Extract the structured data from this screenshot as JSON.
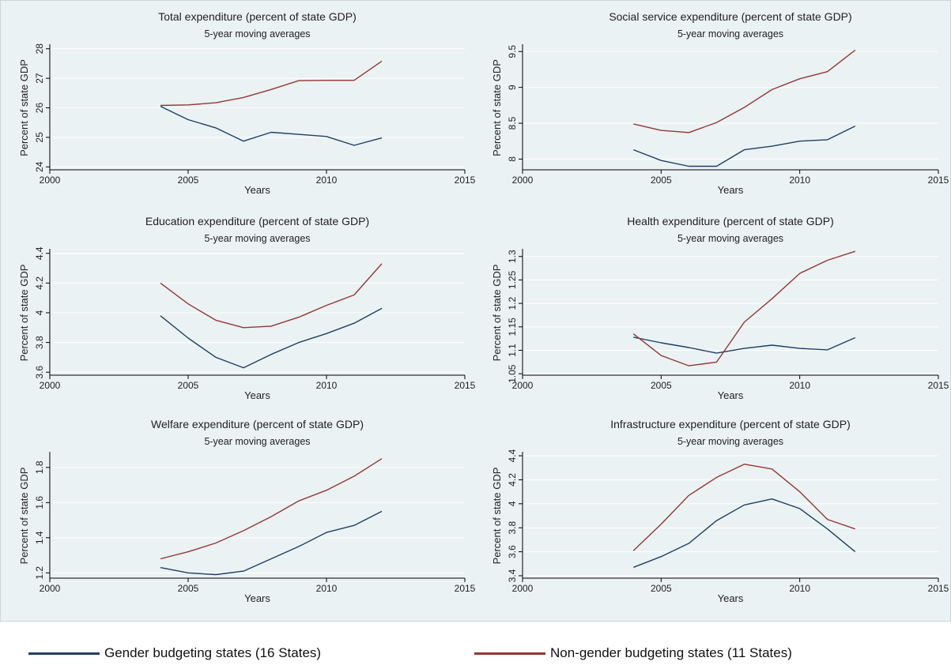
{
  "colors": {
    "gender": "#1f3f64",
    "non_gender": "#953735",
    "background": "#eaf2f3",
    "grid": "#ffffff"
  },
  "legend": {
    "placement": "bottom",
    "gender_label": "Gender budgeting states (16 States)",
    "non_gender_label": "Non-gender budgeting states (11 States)"
  },
  "chart_data": [
    {
      "type": "line",
      "title": "Total expenditure (percent of state GDP)",
      "subtitle": "5-year moving averages",
      "xlabel": "Years",
      "ylabel": "Percent of state GDP",
      "xlim": [
        2000,
        2015
      ],
      "xticks": [
        2000,
        2005,
        2010,
        2015
      ],
      "ylim": [
        23.9,
        28.1
      ],
      "yticks": [
        24,
        25,
        26,
        27,
        28
      ],
      "ytick_labels": [
        "24",
        "25",
        "26",
        "27",
        "28"
      ],
      "x": [
        2004,
        2005,
        2006,
        2007,
        2008,
        2009,
        2010,
        2011,
        2012
      ],
      "series": [
        {
          "name": "Gender budgeting states (16 States)",
          "key": "gender",
          "values": [
            26.05,
            25.6,
            25.32,
            24.87,
            25.17,
            25.1,
            25.03,
            24.73,
            24.98
          ]
        },
        {
          "name": "Non-gender budgeting states (11 States)",
          "key": "non_gender",
          "values": [
            26.08,
            26.1,
            26.17,
            26.35,
            26.62,
            26.92,
            26.93,
            26.93,
            27.58
          ]
        }
      ]
    },
    {
      "type": "line",
      "title": "Social service expenditure (percent of state GDP)",
      "subtitle": "5-year moving averages",
      "xlabel": "Years",
      "ylabel": "Percent of state GDP",
      "xlim": [
        2000,
        2015
      ],
      "xticks": [
        2000,
        2005,
        2010,
        2015
      ],
      "ylim": [
        7.85,
        9.58
      ],
      "yticks": [
        8,
        8.5,
        9,
        9.5
      ],
      "ytick_labels": [
        "8",
        "8.5",
        "9",
        "9.5"
      ],
      "x": [
        2004,
        2005,
        2006,
        2007,
        2008,
        2009,
        2010,
        2011,
        2012
      ],
      "series": [
        {
          "name": "Gender budgeting states (16 States)",
          "key": "gender",
          "values": [
            8.13,
            7.98,
            7.9,
            7.9,
            8.13,
            8.18,
            8.25,
            8.27,
            8.46
          ]
        },
        {
          "name": "Non-gender budgeting states (11 States)",
          "key": "non_gender",
          "values": [
            8.49,
            8.4,
            8.37,
            8.51,
            8.72,
            8.97,
            9.12,
            9.22,
            9.52
          ]
        }
      ]
    },
    {
      "type": "line",
      "title": "Education expenditure (percent of state GDP)",
      "subtitle": "5-year moving averages",
      "xlabel": "Years",
      "ylabel": "Percent of state GDP",
      "xlim": [
        2000,
        2015
      ],
      "xticks": [
        2000,
        2005,
        2010,
        2015
      ],
      "ylim": [
        3.58,
        4.42
      ],
      "yticks": [
        3.6,
        3.8,
        4,
        4.2,
        4.4
      ],
      "ytick_labels": [
        "3.6",
        "3.8",
        "4",
        "4.2",
        "4.4"
      ],
      "x": [
        2004,
        2005,
        2006,
        2007,
        2008,
        2009,
        2010,
        2011,
        2012
      ],
      "series": [
        {
          "name": "Gender budgeting states (16 States)",
          "key": "gender",
          "values": [
            3.98,
            3.83,
            3.7,
            3.63,
            3.72,
            3.8,
            3.86,
            3.93,
            4.03
          ]
        },
        {
          "name": "Non-gender budgeting states (11 States)",
          "key": "non_gender",
          "values": [
            4.2,
            4.06,
            3.95,
            3.9,
            3.91,
            3.97,
            4.05,
            4.12,
            4.33
          ]
        }
      ]
    },
    {
      "type": "line",
      "title": "Health expenditure (percent of state GDP)",
      "subtitle": "5-year moving averages",
      "xlabel": "Years",
      "ylabel": "Percent of state GDP",
      "xlim": [
        2000,
        2015
      ],
      "xticks": [
        2000,
        2005,
        2010,
        2015
      ],
      "ylim": [
        1.047,
        1.313
      ],
      "yticks": [
        1.05,
        1.1,
        1.15,
        1.2,
        1.25,
        1.3
      ],
      "ytick_labels": [
        "1.05",
        "1.1",
        "1.15",
        "1.2",
        "1.25",
        "1.3"
      ],
      "x": [
        2004,
        2005,
        2006,
        2007,
        2008,
        2009,
        2010,
        2011,
        2012
      ],
      "series": [
        {
          "name": "Gender budgeting states (16 States)",
          "key": "gender",
          "values": [
            1.128,
            1.116,
            1.106,
            1.094,
            1.104,
            1.111,
            1.104,
            1.101,
            1.127
          ]
        },
        {
          "name": "Non-gender budgeting states (11 States)",
          "key": "non_gender",
          "values": [
            1.135,
            1.089,
            1.067,
            1.075,
            1.16,
            1.21,
            1.264,
            1.292,
            1.311
          ]
        }
      ]
    },
    {
      "type": "line",
      "title": "Welfare expenditure (percent of state GDP)",
      "subtitle": "5-year moving averages",
      "xlabel": "Years",
      "ylabel": "Percent of state GDP",
      "xlim": [
        2000,
        2015
      ],
      "xticks": [
        2000,
        2005,
        2010,
        2015
      ],
      "ylim": [
        1.17,
        1.88
      ],
      "yticks": [
        1.2,
        1.4,
        1.6,
        1.8
      ],
      "ytick_labels": [
        "1.2",
        "1.4",
        "1.6",
        "1.8"
      ],
      "x": [
        2004,
        2005,
        2006,
        2007,
        2008,
        2009,
        2010,
        2011,
        2012
      ],
      "series": [
        {
          "name": "Gender budgeting states (16 States)",
          "key": "gender",
          "values": [
            1.23,
            1.2,
            1.19,
            1.21,
            1.28,
            1.35,
            1.43,
            1.47,
            1.55
          ]
        },
        {
          "name": "Non-gender budgeting states (11 States)",
          "key": "non_gender",
          "values": [
            1.28,
            1.32,
            1.37,
            1.44,
            1.52,
            1.61,
            1.67,
            1.75,
            1.85
          ]
        }
      ]
    },
    {
      "type": "line",
      "title": "Infrastructure expenditure (percent of state GDP)",
      "subtitle": "5-year moving averages",
      "xlabel": "Years",
      "ylabel": "Percent of state GDP",
      "xlim": [
        2000,
        2015
      ],
      "xticks": [
        2000,
        2005,
        2010,
        2015
      ],
      "ylim": [
        3.38,
        4.42
      ],
      "yticks": [
        3.4,
        3.6,
        3.8,
        4,
        4.2,
        4.4
      ],
      "ytick_labels": [
        "3.4",
        "3.6",
        "3.8",
        "4",
        "4.2",
        "4.4"
      ],
      "x": [
        2004,
        2005,
        2006,
        2007,
        2008,
        2009,
        2010,
        2011,
        2012
      ],
      "series": [
        {
          "name": "Gender budgeting states (16 States)",
          "key": "gender",
          "values": [
            3.47,
            3.56,
            3.67,
            3.86,
            3.99,
            4.04,
            3.96,
            3.79,
            3.6
          ]
        },
        {
          "name": "Non-gender budgeting states (11 States)",
          "key": "non_gender",
          "values": [
            3.61,
            3.83,
            4.07,
            4.22,
            4.33,
            4.29,
            4.1,
            3.87,
            3.79
          ]
        }
      ]
    }
  ]
}
